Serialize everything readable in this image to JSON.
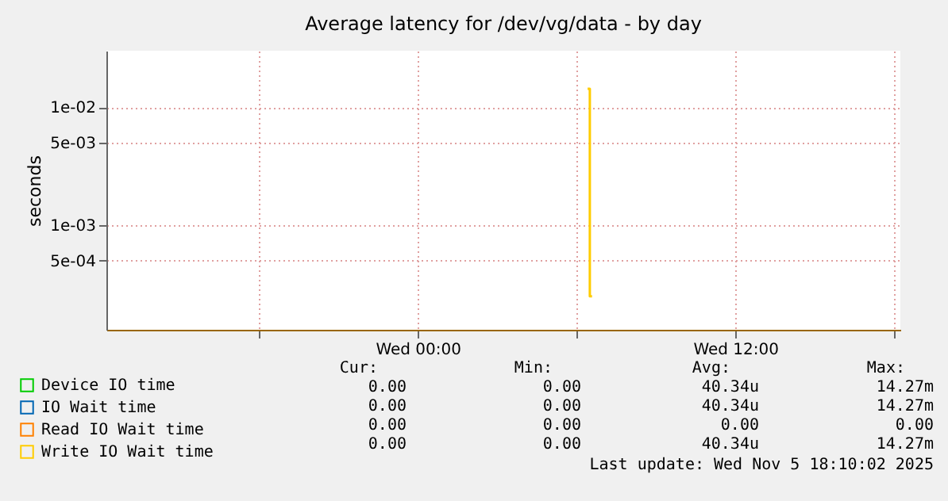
{
  "chart_data": {
    "type": "step",
    "title": "Average latency for /dev/vg/data - by day",
    "ylabel": "seconds",
    "x": [
      "2025-11-05T06:25",
      "2025-11-05T06:30",
      "2025-11-05T06:35"
    ],
    "series": [
      {
        "name": "Device IO time",
        "color": "#00cc00",
        "values": [
          null,
          null,
          null
        ]
      },
      {
        "name": "IO Wait time",
        "color": "#0066b3",
        "values": [
          null,
          null,
          null
        ]
      },
      {
        "name": "Read IO Wait time",
        "color": "#ff8000",
        "values": [
          null,
          null,
          null
        ]
      },
      {
        "name": "Write IO Wait time",
        "color": "#ffcc00",
        "values": [
          0.01427,
          0.00025,
          0.00025
        ]
      }
    ],
    "log": true,
    "ylim": [
      0.00013,
      0.03
    ],
    "yticks": [
      {
        "value": 0.0005,
        "label": "5e-04"
      },
      {
        "value": 0.001,
        "label": "1e-03"
      },
      {
        "value": 0.005,
        "label": "5e-03"
      },
      {
        "value": 0.01,
        "label": "1e-02"
      }
    ],
    "xlim": [
      "2025-11-04T12:14",
      "2025-11-05T18:14"
    ],
    "xticks": [
      {
        "value": "2025-11-04T18:00",
        "label": null
      },
      {
        "value": "2025-11-05T00:00",
        "label": "Wed 00:00"
      },
      {
        "value": "2025-11-05T06:00",
        "label": null
      },
      {
        "value": "2025-11-05T12:00",
        "label": "Wed 12:00"
      },
      {
        "value": "2025-11-05T18:00",
        "label": null
      }
    ],
    "grid": true,
    "legend": "bottom",
    "annotations": [
      "Cur:",
      "Min:",
      "Avg:",
      "Max:",
      "0.00",
      "0.00",
      "40.34u",
      "14.27m",
      "0.00",
      "0.00",
      "40.34u",
      "14.27m",
      "0.00",
      "0.00",
      "0.00",
      "0.00",
      "0.00",
      "0.00",
      "40.34u",
      "14.27m",
      "Last update: Wed Nov  5 18:10:02 2025"
    ]
  }
}
